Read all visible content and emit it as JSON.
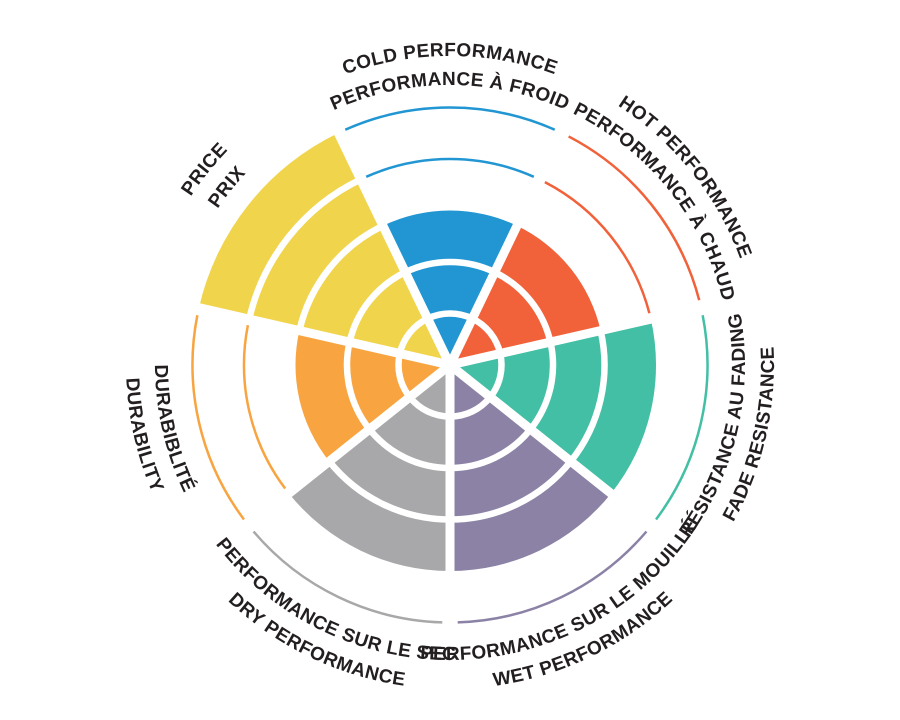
{
  "page": {
    "background": "#FFFFFF",
    "label_text_color": "#231F20"
  },
  "chart_data": {
    "type": "bar",
    "subtype": "polar-sector-rose",
    "title": "",
    "scale": {
      "min": 0,
      "max": 5,
      "rings": 5
    },
    "grid": "concentric ring dividers inside filled sectors; thin colored arcs mark unfilled outer rings",
    "legend": "none",
    "categories_en": [
      "COLD PERFORMANCE",
      "HOT PERFORMANCE",
      "FADE RESISTANCE",
      "WET PERFORMANCE",
      "DRY PERFORMANCE",
      "DURABILITY",
      "PRICE"
    ],
    "categories_fr": [
      "PERFORMANCE À FROID",
      "PERFORMANCE À CHAUD",
      "RÉSISTANCE AU FADING",
      "PERFORMANCE SUR LE MOUILLÉ",
      "PERFORMANCE SUR LE SEC",
      "DURABIBLITÉ",
      "PRIX"
    ],
    "values": [
      3,
      3,
      4,
      4,
      4,
      3,
      5
    ],
    "colors": [
      "#2196D3",
      "#F1613A",
      "#42BFA4",
      "#8B82A6",
      "#A8A8AA",
      "#F8A440",
      "#F0D44C"
    ]
  },
  "sectors": [
    {
      "id": "cold-performance",
      "label_en": "COLD PERFORMANCE",
      "label_fr": "PERFORMANCE À FROID",
      "value": 3,
      "max": 5,
      "color": "#2196D3"
    },
    {
      "id": "hot-performance",
      "label_en": "HOT PERFORMANCE",
      "label_fr": "PERFORMANCE À CHAUD",
      "value": 3,
      "max": 5,
      "color": "#F1613A"
    },
    {
      "id": "fade-resistance",
      "label_en": "FADE RESISTANCE",
      "label_fr": "RÉSISTANCE AU FADING",
      "value": 4,
      "max": 5,
      "color": "#42BFA4"
    },
    {
      "id": "wet-performance",
      "label_en": "WET PERFORMANCE",
      "label_fr": "PERFORMANCE SUR LE MOUILLÉ",
      "value": 4,
      "max": 5,
      "color": "#8B82A6"
    },
    {
      "id": "dry-performance",
      "label_en": "DRY PERFORMANCE",
      "label_fr": "PERFORMANCE SUR LE SEC",
      "value": 4,
      "max": 5,
      "color": "#A8A8AA"
    },
    {
      "id": "durability",
      "label_en": "DURABILITY",
      "label_fr": "DURABIBLITÉ",
      "value": 3,
      "max": 5,
      "color": "#F8A440"
    },
    {
      "id": "price",
      "label_en": "PRICE",
      "label_fr": "PRIX",
      "value": 5,
      "max": 5,
      "color": "#F0D44C"
    }
  ]
}
